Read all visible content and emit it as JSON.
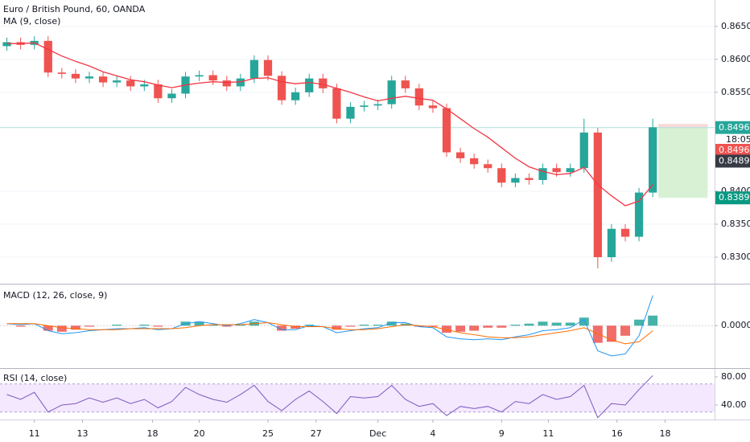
{
  "chart_data": [
    {
      "type": "candlestick",
      "title": "Euro / British Pound, 60, OANDA",
      "subtitle": "MA (9, close)",
      "x": [
        0,
        1,
        2,
        3,
        4,
        5,
        6,
        7,
        8,
        9,
        10,
        11,
        12,
        13,
        14,
        15,
        16,
        17,
        18,
        19,
        20,
        21,
        22,
        23,
        24,
        25,
        26,
        27,
        28,
        29,
        30,
        31,
        32,
        33,
        34,
        35,
        36,
        37,
        38,
        39,
        40,
        41,
        42,
        43,
        44,
        45,
        46,
        47
      ],
      "open": [
        0.862,
        0.8626,
        0.8622,
        0.8628,
        0.858,
        0.8578,
        0.8571,
        0.8574,
        0.8565,
        0.8568,
        0.8559,
        0.8562,
        0.8541,
        0.8548,
        0.8574,
        0.8576,
        0.8568,
        0.8559,
        0.8571,
        0.8599,
        0.8575,
        0.8538,
        0.855,
        0.8571,
        0.8556,
        0.851,
        0.8528,
        0.853,
        0.8532,
        0.8568,
        0.8556,
        0.853,
        0.8526,
        0.8459,
        0.845,
        0.8441,
        0.8435,
        0.8413,
        0.842,
        0.8417,
        0.8435,
        0.8429,
        0.8435,
        0.8489,
        0.83,
        0.8343,
        0.8331,
        0.8398
      ],
      "high": [
        0.8633,
        0.8633,
        0.8635,
        0.8635,
        0.8587,
        0.8585,
        0.8581,
        0.8581,
        0.8575,
        0.8575,
        0.8569,
        0.8569,
        0.8555,
        0.8581,
        0.8583,
        0.8583,
        0.8575,
        0.8578,
        0.8606,
        0.8606,
        0.8582,
        0.8557,
        0.8578,
        0.8578,
        0.8563,
        0.8535,
        0.8537,
        0.8539,
        0.8575,
        0.8575,
        0.8563,
        0.8537,
        0.8533,
        0.8466,
        0.8457,
        0.8448,
        0.8442,
        0.8427,
        0.8427,
        0.8442,
        0.8442,
        0.8442,
        0.851,
        0.8496,
        0.835,
        0.835,
        0.8405,
        0.851
      ],
      "low": [
        0.8613,
        0.8615,
        0.8615,
        0.8573,
        0.8571,
        0.8564,
        0.8564,
        0.8558,
        0.8558,
        0.8552,
        0.8552,
        0.8534,
        0.8534,
        0.8541,
        0.8567,
        0.8561,
        0.8552,
        0.8552,
        0.8564,
        0.8568,
        0.8531,
        0.8531,
        0.8543,
        0.8549,
        0.8503,
        0.8503,
        0.8521,
        0.8523,
        0.8525,
        0.8549,
        0.8523,
        0.8519,
        0.8452,
        0.8443,
        0.8434,
        0.8428,
        0.8406,
        0.8406,
        0.841,
        0.841,
        0.8422,
        0.8422,
        0.8428,
        0.8283,
        0.8293,
        0.8324,
        0.8324,
        0.8391
      ],
      "close": [
        0.8626,
        0.8622,
        0.8628,
        0.858,
        0.8578,
        0.8571,
        0.8574,
        0.8565,
        0.8568,
        0.8559,
        0.8562,
        0.8541,
        0.8548,
        0.8574,
        0.8576,
        0.8568,
        0.8559,
        0.8571,
        0.8599,
        0.8575,
        0.8538,
        0.855,
        0.8571,
        0.8556,
        0.851,
        0.8528,
        0.853,
        0.8532,
        0.8568,
        0.8556,
        0.853,
        0.8526,
        0.8459,
        0.845,
        0.8441,
        0.8435,
        0.8413,
        0.842,
        0.8417,
        0.8435,
        0.8429,
        0.8435,
        0.8489,
        0.83,
        0.8343,
        0.8331,
        0.8398,
        0.8497
      ],
      "ma": [
        0.8624,
        0.8624,
        0.8625,
        0.8615,
        0.8605,
        0.8597,
        0.859,
        0.8581,
        0.8575,
        0.8569,
        0.8566,
        0.8561,
        0.8557,
        0.8561,
        0.8564,
        0.8566,
        0.8565,
        0.8566,
        0.8571,
        0.8572,
        0.8566,
        0.8563,
        0.8565,
        0.8562,
        0.8556,
        0.855,
        0.8543,
        0.8537,
        0.8541,
        0.8544,
        0.8541,
        0.8538,
        0.8525,
        0.851,
        0.8495,
        0.8482,
        0.8466,
        0.845,
        0.8437,
        0.843,
        0.8425,
        0.8427,
        0.8436,
        0.841,
        0.8393,
        0.8378,
        0.8385,
        0.841
      ],
      "up_color": "#26a69a",
      "down_color": "#ef5350",
      "ma_color": "#f23645",
      "xlim": [
        -0.5,
        51.5
      ],
      "ylim": [
        0.8261,
        0.869
      ],
      "yticks": [
        {
          "value": 0.865,
          "label": "0.86500"
        },
        {
          "value": 0.86,
          "label": "0.86000"
        },
        {
          "value": 0.855,
          "label": "0.85500"
        },
        {
          "value": 0.84,
          "label": "0.84000"
        },
        {
          "value": 0.835,
          "label": "0.83500"
        },
        {
          "value": 0.83,
          "label": "0.83000"
        }
      ],
      "grid": true,
      "position": {
        "x": [
          47.4,
          51
        ],
        "entry": 0.84962,
        "stop": 0.8502,
        "target": 0.83899
      },
      "price_labels": [
        {
          "value": 0.84965,
          "label": "0.84965",
          "color": "#26a69a"
        },
        {
          "value": 0.84962,
          "label": "0.84962",
          "color": "#ef5350"
        },
        {
          "value": 0.84895,
          "label": "0.84895",
          "color": "#363a45"
        },
        {
          "value": 0.83899,
          "label": "0.83899",
          "color": "#089981"
        }
      ],
      "countdown": "18:05"
    },
    {
      "type": "macd",
      "title": "MACD (12, 26, close, 9)",
      "x": [
        0,
        1,
        2,
        3,
        4,
        5,
        6,
        7,
        8,
        9,
        10,
        11,
        12,
        13,
        14,
        15,
        16,
        17,
        18,
        19,
        20,
        21,
        22,
        23,
        24,
        25,
        26,
        27,
        28,
        29,
        30,
        31,
        32,
        33,
        34,
        35,
        36,
        37,
        38,
        39,
        40,
        41,
        42,
        43,
        44,
        45,
        46,
        47
      ],
      "series": [
        {
          "name": "MACD",
          "color": "#2196f3",
          "values": [
            0.0002,
            0.0001,
            0.0002,
            -0.0005,
            -0.0008,
            -0.0007,
            -0.0005,
            -0.0004,
            -0.0003,
            -0.0003,
            -0.0002,
            -0.0004,
            -0.0003,
            0.0002,
            0.0004,
            0.0002,
            0.0,
            0.0002,
            0.0006,
            0.0003,
            -0.0004,
            -0.0004,
            0.0,
            -0.0001,
            -0.0007,
            -0.0005,
            -0.0003,
            -0.0002,
            0.0003,
            0.0003,
            -0.0001,
            -0.0002,
            -0.0011,
            -0.0013,
            -0.0014,
            -0.0013,
            -0.0014,
            -0.0011,
            -0.0009,
            -0.0005,
            -0.0004,
            -0.0002,
            0.0006,
            -0.0025,
            -0.003,
            -0.0028,
            -0.001,
            0.003
          ]
        },
        {
          "name": "Signal",
          "color": "#ff6d00",
          "values": [
            0.0002,
            0.0002,
            0.0002,
            0.0,
            -0.0002,
            -0.0003,
            -0.0004,
            -0.0004,
            -0.0004,
            -0.0003,
            -0.0003,
            -0.0003,
            -0.0003,
            -0.0002,
            0.0,
            0.0001,
            0.0001,
            0.0001,
            0.0002,
            0.0003,
            0.0001,
            -0.0001,
            -0.0001,
            -0.0001,
            -0.0003,
            -0.0004,
            -0.0004,
            -0.0003,
            -0.0001,
            0.0001,
            0.0,
            -0.0001,
            -0.0004,
            -0.0007,
            -0.0009,
            -0.0011,
            -0.0012,
            -0.0012,
            -0.0011,
            -0.0009,
            -0.0007,
            -0.0005,
            -0.0002,
            -0.0008,
            -0.0014,
            -0.0018,
            -0.0016,
            -0.0005
          ]
        }
      ],
      "histogram": [
        0.0,
        -0.0001,
        0.0,
        -0.0005,
        -0.0006,
        -0.0004,
        -0.0001,
        0.0,
        0.0001,
        0.0,
        0.0001,
        -0.0001,
        0.0,
        0.0004,
        0.0004,
        0.0001,
        -0.0001,
        0.0001,
        0.0004,
        0.0,
        -0.0005,
        -0.0003,
        0.0001,
        0.0,
        -0.0004,
        -0.0001,
        0.0001,
        0.0001,
        0.0004,
        0.0002,
        -0.0001,
        -0.0001,
        -0.0007,
        -0.0006,
        -0.0005,
        -0.0002,
        -0.0002,
        0.0001,
        0.0002,
        0.0004,
        0.0003,
        0.0003,
        0.0008,
        -0.0017,
        -0.0016,
        -0.001,
        0.0006,
        0.001
      ],
      "up_color": "#26a69a",
      "down_color": "#ef5350",
      "xlim": [
        -0.5,
        51.5
      ],
      "ylim": [
        -0.0042,
        0.004
      ],
      "yticks": [
        {
          "value": 0,
          "label": "0.00000"
        }
      ]
    },
    {
      "type": "rsi",
      "title": "RSI (14, close)",
      "x": [
        0,
        1,
        2,
        3,
        4,
        5,
        6,
        7,
        8,
        9,
        10,
        11,
        12,
        13,
        14,
        15,
        16,
        17,
        18,
        19,
        20,
        21,
        22,
        23,
        24,
        25,
        26,
        27,
        28,
        29,
        30,
        31,
        32,
        33,
        34,
        35,
        36,
        37,
        38,
        39,
        40,
        41,
        42,
        43,
        44,
        45,
        46,
        47
      ],
      "values": [
        55,
        48,
        58,
        30,
        40,
        42,
        50,
        44,
        50,
        42,
        48,
        36,
        45,
        65,
        55,
        48,
        44,
        55,
        68,
        45,
        32,
        48,
        60,
        45,
        28,
        52,
        50,
        52,
        68,
        48,
        38,
        42,
        25,
        38,
        35,
        38,
        30,
        45,
        42,
        55,
        48,
        52,
        68,
        22,
        42,
        40,
        62,
        82
      ],
      "color": "#7e57c2",
      "band": [
        30,
        70
      ],
      "band_color": "#f3e8fd",
      "xlim": [
        -0.5,
        51.5
      ],
      "ylim": [
        19.4,
        90.3
      ],
      "yticks": [
        {
          "value": 40,
          "label": "40.00"
        },
        {
          "value": 80,
          "label": "80.00"
        }
      ],
      "xticks": [
        {
          "value": 2,
          "label": "11"
        },
        {
          "value": 5.5,
          "label": "13"
        },
        {
          "value": 10.6,
          "label": "18"
        },
        {
          "value": 14,
          "label": "20"
        },
        {
          "value": 19,
          "label": "25"
        },
        {
          "value": 22.5,
          "label": "27"
        },
        {
          "value": 27,
          "label": "Dec"
        },
        {
          "value": 31,
          "label": "4"
        },
        {
          "value": 36,
          "label": "9"
        },
        {
          "value": 39.4,
          "label": "11"
        },
        {
          "value": 44.4,
          "label": "16"
        },
        {
          "value": 47.9,
          "label": "18"
        }
      ]
    }
  ]
}
